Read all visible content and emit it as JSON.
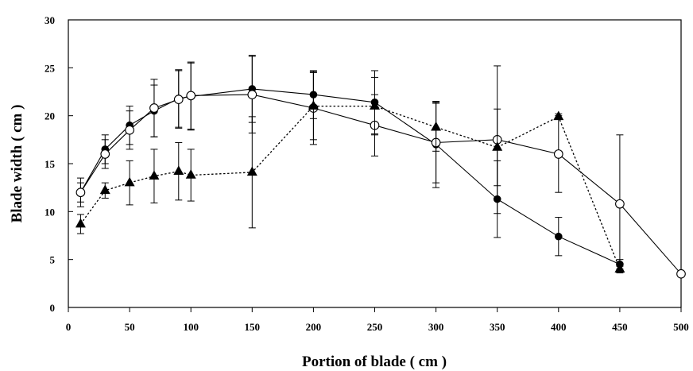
{
  "chart_data": {
    "type": "line",
    "title": "",
    "xlabel": "Portion of blade ( cm )",
    "ylabel": "Blade width ( cm )",
    "xlim": [
      0,
      500
    ],
    "ylim": [
      0,
      30
    ],
    "xticks": [
      0,
      50,
      100,
      150,
      200,
      250,
      300,
      350,
      400,
      450,
      500
    ],
    "yticks": [
      0,
      5,
      10,
      15,
      20,
      25,
      30
    ],
    "grid": false,
    "legend": "none",
    "series": [
      {
        "marker": "filled-circle",
        "line": "solid",
        "color": "#000000",
        "x": [
          10,
          30,
          50,
          70,
          90,
          100,
          150,
          200,
          250,
          300,
          350,
          400,
          450
        ],
        "y": [
          12.0,
          16.5,
          19.0,
          20.5,
          21.8,
          22.0,
          22.8,
          22.2,
          21.4,
          17.0,
          11.3,
          7.4,
          4.5
        ],
        "err": [
          1.0,
          1.5,
          2.0,
          2.7,
          3.0,
          3.5,
          3.5,
          2.5,
          3.3,
          4.5,
          4.0,
          2.0,
          0.5
        ]
      },
      {
        "marker": "open-circle",
        "line": "solid",
        "color": "#000000",
        "x": [
          10,
          30,
          50,
          70,
          90,
          100,
          150,
          200,
          250,
          300,
          350,
          400,
          450,
          500
        ],
        "y": [
          12.0,
          16.0,
          18.5,
          20.8,
          21.7,
          22.1,
          22.2,
          20.8,
          19.0,
          17.2,
          17.5,
          16.0,
          10.8,
          3.5
        ],
        "err": [
          1.5,
          1.5,
          2.0,
          3.0,
          3.0,
          3.5,
          4.0,
          3.8,
          3.2,
          4.2,
          7.7,
          4.0,
          7.2,
          0.0
        ]
      },
      {
        "marker": "filled-triangle",
        "line": "dotted",
        "color": "#000000",
        "x": [
          10,
          30,
          50,
          70,
          90,
          100,
          150,
          200,
          250,
          300,
          350,
          400,
          450
        ],
        "y": [
          8.7,
          12.2,
          13.0,
          13.7,
          14.2,
          13.8,
          14.1,
          21.0,
          21.0,
          18.8,
          16.7,
          19.9,
          4.0
        ],
        "err": [
          1.0,
          0.8,
          2.3,
          2.8,
          3.0,
          2.7,
          5.8,
          3.5,
          3.0,
          2.5,
          4.0,
          0.3,
          0.3
        ]
      }
    ]
  }
}
